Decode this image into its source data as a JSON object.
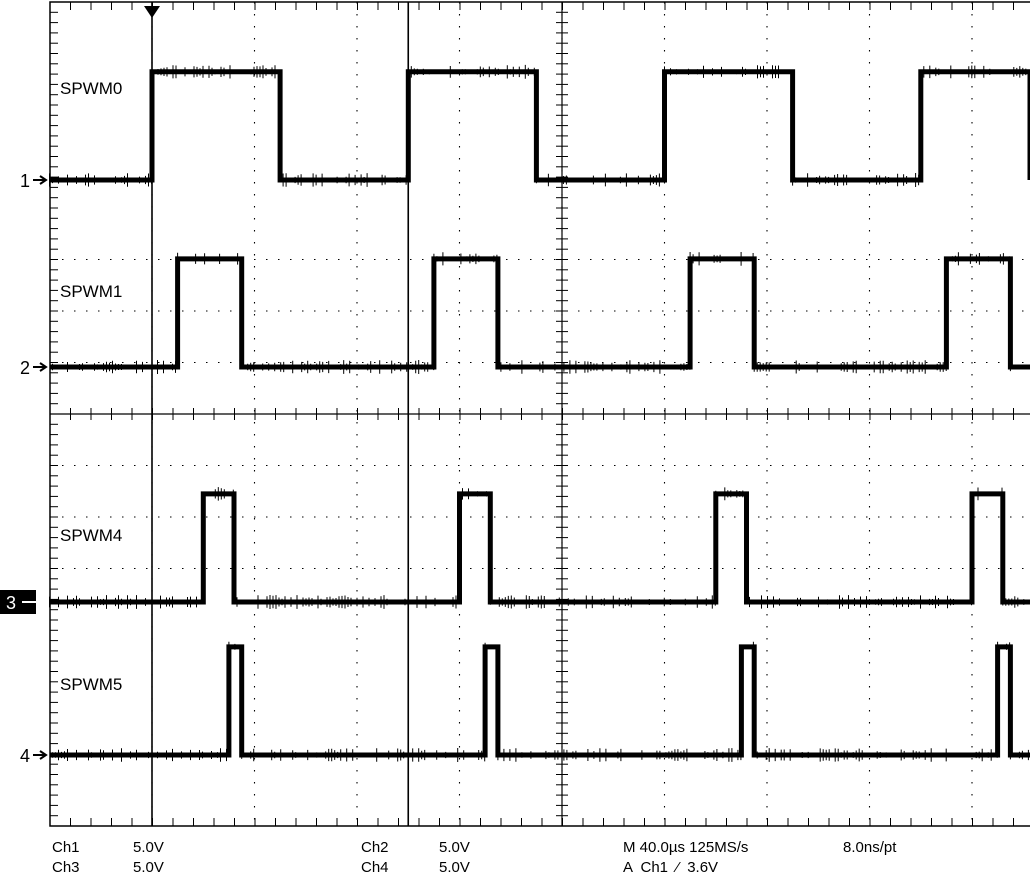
{
  "chart_data": {
    "type": "line",
    "title": "",
    "xlabel": "",
    "ylabel": "",
    "grid": true,
    "x_divisions": 10,
    "y_divisions": 8,
    "time_unit": "µs",
    "time_per_div": 40.0,
    "xlim": [
      0,
      400
    ],
    "ylim": [
      -20,
      20
    ],
    "trigger_time": 40,
    "series": [
      {
        "name": "SPWM0",
        "channel": "1",
        "volts_per_div": 5.0,
        "amplitude_v": 5.0,
        "x": [
          0,
          40,
          40,
          90,
          90,
          140,
          140,
          190,
          190,
          240,
          240,
          290,
          290,
          340,
          340,
          390,
          390,
          400
        ],
        "v": [
          0,
          0,
          5,
          5,
          0,
          0,
          5,
          5,
          0,
          0,
          5,
          5,
          0,
          0,
          5,
          5,
          0,
          0
        ]
      },
      {
        "name": "SPWM1",
        "channel": "2",
        "volts_per_div": 5.0,
        "amplitude_v": 5.0,
        "x": [
          0,
          50,
          50,
          75,
          75,
          150,
          150,
          175,
          175,
          250,
          250,
          275,
          275,
          350,
          350,
          375,
          375,
          400
        ],
        "v": [
          0,
          0,
          5,
          5,
          0,
          0,
          5,
          5,
          0,
          0,
          5,
          5,
          0,
          0,
          5,
          5,
          0,
          0
        ]
      },
      {
        "name": "SPWM4",
        "channel": "3",
        "volts_per_div": 5.0,
        "amplitude_v": 5.0,
        "x": [
          0,
          60,
          60,
          72,
          72,
          160,
          160,
          172,
          172,
          260,
          260,
          272,
          272,
          360,
          360,
          372,
          372,
          400
        ],
        "v": [
          0,
          0,
          5,
          5,
          0,
          0,
          5,
          5,
          0,
          0,
          5,
          5,
          0,
          0,
          5,
          5,
          0,
          0
        ]
      },
      {
        "name": "SPWM5",
        "channel": "4",
        "volts_per_div": 5.0,
        "amplitude_v": 5.0,
        "x": [
          0,
          70,
          70,
          75,
          75,
          170,
          170,
          175,
          175,
          270,
          270,
          275,
          275,
          370,
          370,
          375,
          375,
          400
        ],
        "v": [
          0,
          0,
          5,
          5,
          0,
          0,
          5,
          5,
          0,
          0,
          5,
          5,
          0,
          0,
          5,
          5,
          0,
          0
        ]
      }
    ]
  },
  "scope": {
    "ch1_label": "Ch1",
    "ch1_scale": "5.0V",
    "ch2_label": "Ch2",
    "ch2_scale": "5.0V",
    "ch3_label": "Ch3",
    "ch3_scale": "5.0V",
    "ch4_label": "Ch4",
    "ch4_scale": "5.0V",
    "timebase": "M 40.0µs 125MS/s",
    "record": "8.0ns/pt",
    "trigger": "A  Ch1  ⁄  3.6V"
  },
  "colors": {
    "background": "#ffffff",
    "trace": "#000000",
    "grid": "#000000"
  }
}
